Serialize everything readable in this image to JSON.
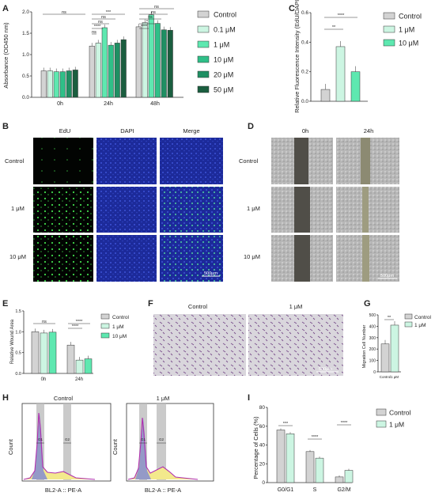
{
  "panels": {
    "A": {
      "label": "A",
      "ylabel": "Absorbance (OD450 nm)",
      "yticks": [
        "0.0",
        "0.5",
        "1.0",
        "1.5",
        "2.0"
      ],
      "legend": [
        "Control",
        "0.1 μM",
        "1 μM",
        "10 μM",
        "20 μM",
        "50 μM"
      ],
      "legend_colors": [
        "#d3d3d3",
        "#ccf5e2",
        "#5ee8b0",
        "#2fbf88",
        "#1f8f63",
        "#1a5e3f"
      ],
      "groups": [
        "0h",
        "24h",
        "48h"
      ],
      "sig": [
        "ns",
        "***",
        "ns",
        "ns",
        "****",
        "ns",
        "ns",
        "ns",
        "ns",
        "*",
        "****"
      ]
    },
    "B": {
      "label": "B",
      "cols": [
        "EdU",
        "DAPI",
        "Merge"
      ],
      "rows": [
        "Control",
        "1 μM",
        "10 μM"
      ],
      "scale": "500μm"
    },
    "C": {
      "label": "C",
      "ylabel": "Relative Fluorescence Intensity (EdU/DAPI)",
      "yticks": [
        "0.0",
        "0.2",
        "0.4",
        "0.6"
      ],
      "legend": [
        "Control",
        "1 μM",
        "10 μM"
      ],
      "sig": [
        "**",
        "****"
      ]
    },
    "D": {
      "label": "D",
      "cols": [
        "0h",
        "24h"
      ],
      "rows": [
        "Control",
        "1 μM",
        "10 μM"
      ],
      "scale": "500μm"
    },
    "E": {
      "label": "E",
      "ylabel": "Relative Wound Area",
      "yticks": [
        "0.0",
        "0.5",
        "1.0",
        "1.5"
      ],
      "legend": [
        "Control",
        "1 μM",
        "10 μM"
      ],
      "groups": [
        "0h",
        "24h"
      ],
      "sig": [
        "ns",
        "****",
        "****"
      ]
    },
    "F": {
      "label": "F",
      "cols": [
        "Control",
        "1 μM"
      ],
      "scale": "500μm"
    },
    "G": {
      "label": "G",
      "ylabel": "Migration Cell Number",
      "yticks": [
        "0",
        "100",
        "200",
        "300",
        "400",
        "500"
      ],
      "legend": [
        "Control",
        "1 μM"
      ],
      "xcats": [
        "Control",
        "1 μM"
      ],
      "sig": "**"
    },
    "H": {
      "label": "H",
      "titles": [
        "Control",
        "1 μM"
      ],
      "ylabel": "Count",
      "xlabel": "BL2-A :: PE-A",
      "gates": [
        "G1",
        "G2"
      ]
    },
    "I": {
      "label": "I",
      "ylabel": "Percentage of Cells (%)",
      "yticks": [
        "0",
        "20",
        "40",
        "60",
        "80"
      ],
      "legend": [
        "Control",
        "1 μM"
      ],
      "groups": [
        "G0/G1",
        "S",
        "G2/M"
      ],
      "sig": [
        "***",
        "****",
        "****"
      ]
    }
  },
  "chart_data": [
    {
      "type": "bar",
      "panel": "A",
      "categories": [
        "0h",
        "24h",
        "48h"
      ],
      "ylim": [
        0,
        2.0
      ],
      "series": [
        {
          "name": "Control",
          "values": [
            0.62,
            1.2,
            1.65
          ]
        },
        {
          "name": "0.1 μM",
          "values": [
            0.62,
            1.27,
            1.75
          ]
        },
        {
          "name": "1 μM",
          "values": [
            0.6,
            1.63,
            1.93
          ]
        },
        {
          "name": "10 μM",
          "values": [
            0.6,
            1.22,
            1.73
          ]
        },
        {
          "name": "20 μM",
          "values": [
            0.62,
            1.27,
            1.58
          ]
        },
        {
          "name": "50 μM",
          "values": [
            0.64,
            1.35,
            1.57
          ]
        }
      ]
    },
    {
      "type": "bar",
      "panel": "C",
      "categories": [
        "Control",
        "1 μM",
        "10 μM"
      ],
      "values": [
        0.08,
        0.37,
        0.2
      ],
      "ylim": [
        0,
        0.6
      ]
    },
    {
      "type": "bar",
      "panel": "E",
      "categories": [
        "0h",
        "24h"
      ],
      "ylim": [
        0,
        1.5
      ],
      "series": [
        {
          "name": "Control",
          "values": [
            1.0,
            0.68
          ]
        },
        {
          "name": "1 μM",
          "values": [
            0.97,
            0.32
          ]
        },
        {
          "name": "10 μM",
          "values": [
            0.99,
            0.35
          ]
        }
      ]
    },
    {
      "type": "bar",
      "panel": "G",
      "categories": [
        "Control",
        "1 μM"
      ],
      "values": [
        245,
        410
      ],
      "ylim": [
        0,
        500
      ]
    },
    {
      "type": "bar",
      "panel": "I",
      "categories": [
        "G0/G1",
        "S",
        "G2/M"
      ],
      "ylim": [
        0,
        80
      ],
      "series": [
        {
          "name": "Control",
          "values": [
            56,
            33,
            6
          ]
        },
        {
          "name": "1 μM",
          "values": [
            52,
            26,
            13
          ]
        }
      ]
    }
  ]
}
